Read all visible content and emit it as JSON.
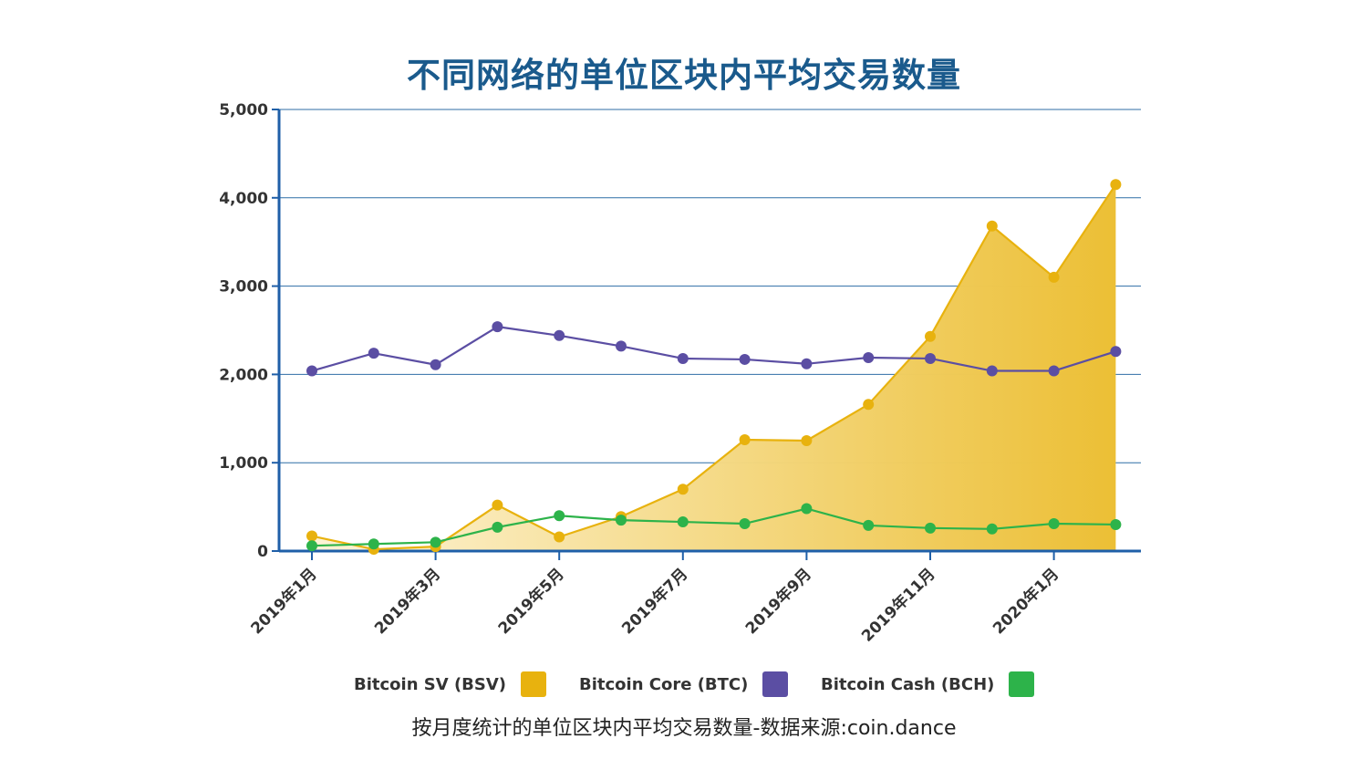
{
  "title": "不同网络的单位区块内平均交易数量",
  "caption": "按月度统计的单位区块内平均交易数量-数据来源:coin.dance",
  "chart_data": {
    "type": "line",
    "title": "不同网络的单位区块内平均交易数量",
    "ylim": [
      0,
      5000
    ],
    "yticks": [
      0,
      1000,
      2000,
      3000,
      4000,
      5000
    ],
    "ytick_labels": [
      "0",
      "1,000",
      "2,000",
      "3,000",
      "4,000",
      "5,000"
    ],
    "x": [
      "2019-01",
      "2019-02",
      "2019-03",
      "2019-04",
      "2019-05",
      "2019-06",
      "2019-07",
      "2019-08",
      "2019-09",
      "2019-10",
      "2019-11",
      "2019-12",
      "2020-01",
      "2020-02"
    ],
    "xtick_labels": [
      "2019年1月",
      "2019年3月",
      "2019年5月",
      "2019年7月",
      "2019年9月",
      "2019年11月",
      "2020年1月"
    ],
    "xtick_index": [
      0,
      2,
      4,
      6,
      8,
      10,
      12
    ],
    "grid": true,
    "series": [
      {
        "name": "Bitcoin SV (BSV)",
        "color": "#e8b20e",
        "area": true,
        "values": [
          170,
          20,
          50,
          520,
          160,
          390,
          700,
          1260,
          1250,
          1660,
          2430,
          3680,
          3100,
          4150
        ]
      },
      {
        "name": "Bitcoin Core (BTC)",
        "color": "#5b4ea3",
        "area": false,
        "values": [
          2040,
          2240,
          2110,
          2540,
          2440,
          2320,
          2180,
          2170,
          2120,
          2190,
          2180,
          2040,
          2040,
          2260
        ]
      },
      {
        "name": "Bitcoin Cash (BCH)",
        "color": "#2db34a",
        "area": false,
        "values": [
          60,
          80,
          100,
          270,
          400,
          350,
          330,
          310,
          480,
          290,
          260,
          250,
          310,
          300
        ]
      }
    ]
  }
}
